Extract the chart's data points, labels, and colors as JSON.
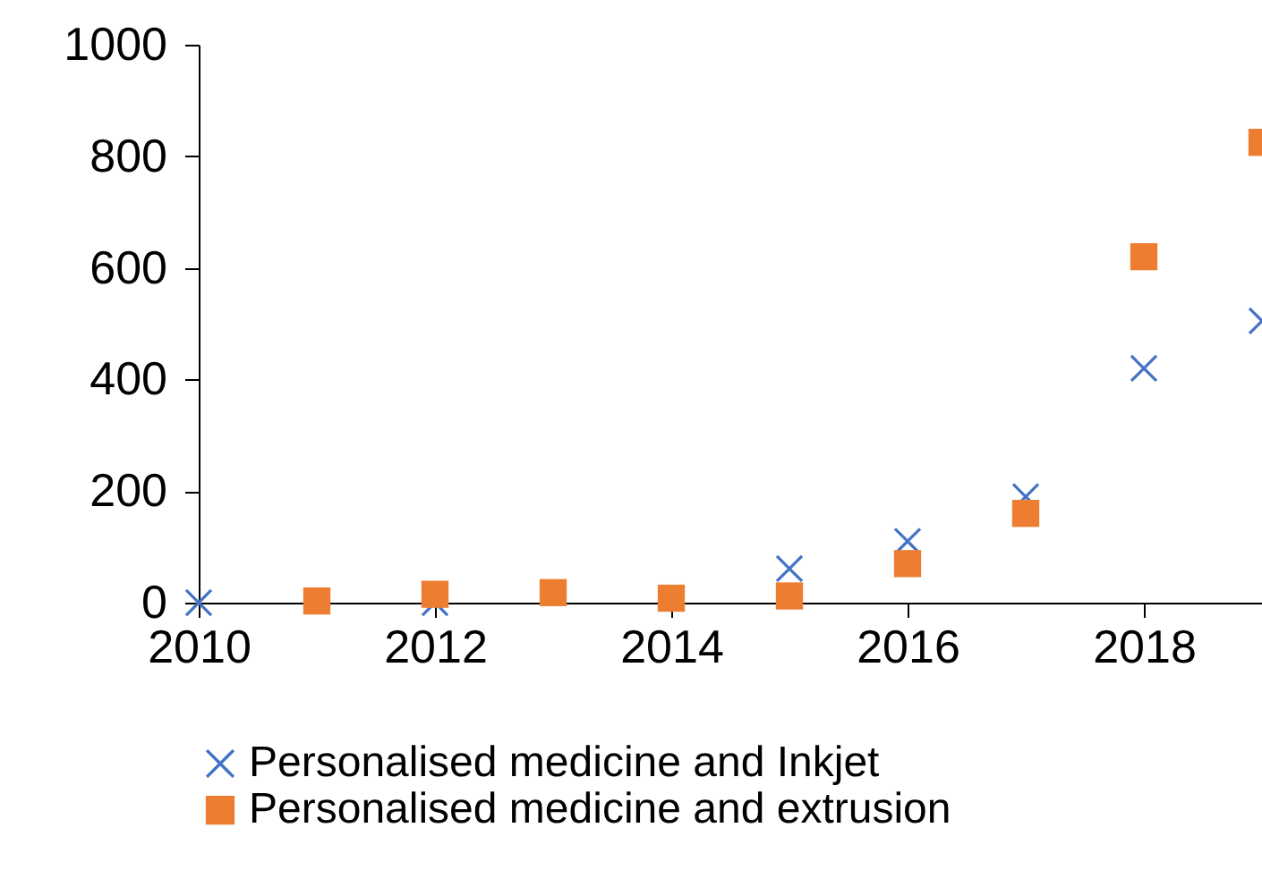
{
  "chart_data": {
    "type": "scatter",
    "x": [
      2010,
      2011,
      2012,
      2013,
      2014,
      2015,
      2016,
      2017,
      2018,
      2019
    ],
    "series": [
      {
        "name": "Personalised medicine and Inkjet",
        "color": "#4472c4",
        "marker": "cross",
        "values": [
          0,
          null,
          0,
          null,
          null,
          61,
          110,
          190,
          420,
          505
        ]
      },
      {
        "name": "Personalised medicine and extrusion",
        "color": "#ed7d31",
        "marker": "square",
        "values": [
          null,
          3,
          15,
          18,
          8,
          12,
          70,
          160,
          620,
          825
        ]
      }
    ],
    "xlim": [
      2010,
      2019
    ],
    "xticks": [
      2010,
      2012,
      2014,
      2016,
      2018
    ],
    "ylim": [
      0,
      1000
    ],
    "yticks": [
      0,
      200,
      400,
      600,
      800,
      1000
    ],
    "grid": false,
    "legend": "bottom"
  }
}
